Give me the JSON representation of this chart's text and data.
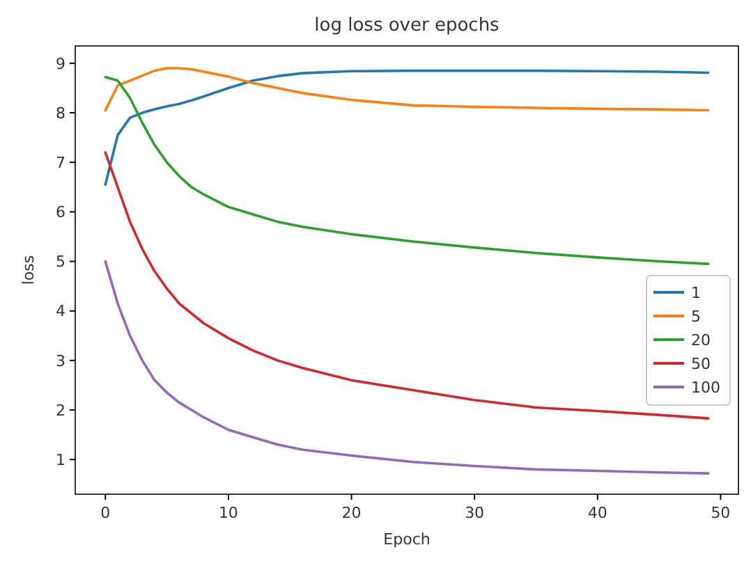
{
  "chart_data": {
    "type": "line",
    "title": "log loss over epochs",
    "xlabel": "Epoch",
    "ylabel": "loss",
    "x": [
      0,
      1,
      2,
      3,
      4,
      5,
      6,
      7,
      8,
      10,
      12,
      14,
      16,
      20,
      25,
      30,
      35,
      40,
      45,
      49
    ],
    "series": [
      {
        "name": "1",
        "color": "#1f77b4",
        "values": [
          6.55,
          7.55,
          7.9,
          8.0,
          8.07,
          8.13,
          8.18,
          8.25,
          8.33,
          8.5,
          8.65,
          8.74,
          8.8,
          8.84,
          8.85,
          8.85,
          8.85,
          8.84,
          8.83,
          8.81
        ]
      },
      {
        "name": "5",
        "color": "#ff7f0e",
        "values": [
          8.05,
          8.55,
          8.65,
          8.75,
          8.85,
          8.9,
          8.9,
          8.88,
          8.83,
          8.73,
          8.6,
          8.5,
          8.4,
          8.26,
          8.15,
          8.12,
          8.1,
          8.08,
          8.07,
          8.05
        ]
      },
      {
        "name": "20",
        "color": "#2ca02c",
        "values": [
          8.72,
          8.65,
          8.3,
          7.8,
          7.35,
          7.0,
          6.72,
          6.5,
          6.35,
          6.1,
          5.95,
          5.8,
          5.7,
          5.55,
          5.4,
          5.28,
          5.17,
          5.08,
          5.0,
          4.95
        ]
      },
      {
        "name": "50",
        "color": "#d62728",
        "values": [
          7.2,
          6.5,
          5.8,
          5.25,
          4.8,
          4.45,
          4.15,
          3.95,
          3.75,
          3.45,
          3.2,
          3.0,
          2.85,
          2.6,
          2.4,
          2.2,
          2.05,
          1.98,
          1.9,
          1.83
        ]
      },
      {
        "name": "100",
        "color": "#9467bd",
        "values": [
          5.0,
          4.15,
          3.5,
          3.0,
          2.6,
          2.35,
          2.15,
          2.0,
          1.85,
          1.6,
          1.45,
          1.3,
          1.2,
          1.08,
          0.95,
          0.87,
          0.8,
          0.77,
          0.74,
          0.72
        ]
      }
    ],
    "xlim": [
      -2.45,
      51.45
    ],
    "xticks": [
      0,
      10,
      20,
      30,
      40,
      50
    ],
    "ylim": [
      0.3,
      9.35
    ],
    "yticks": [
      1,
      2,
      3,
      4,
      5,
      6,
      7,
      8,
      9
    ],
    "grid": false,
    "legend": "center right",
    "marker": "none",
    "line_style": "solid"
  }
}
